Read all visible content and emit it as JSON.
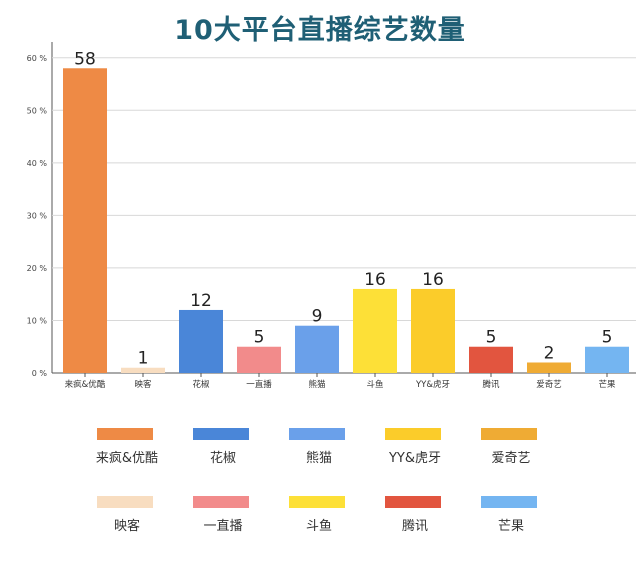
{
  "chart_data": {
    "type": "bar",
    "title": "10大平台直播综艺数量",
    "categories": [
      "来疯&优酷",
      "映客",
      "花椒",
      "一直播",
      "熊猫",
      "斗鱼",
      "YY&虎牙",
      "腾讯",
      "爱奇艺",
      "芒果"
    ],
    "values": [
      58,
      1,
      12,
      5,
      9,
      16,
      16,
      5,
      2,
      5
    ],
    "colors": [
      "#ee8a45",
      "#f8ddc0",
      "#4a86d8",
      "#f28b8b",
      "#6aa0ea",
      "#fde037",
      "#fbcc2a",
      "#e2553f",
      "#efab34",
      "#74b5f1"
    ],
    "y_tick_labels": [
      "0 %",
      "10 %",
      "20 %",
      "30 %",
      "40 %",
      "50 %",
      "60 %"
    ],
    "y_ticks": [
      0,
      10,
      20,
      30,
      40,
      50,
      60
    ],
    "ylim": [
      0,
      63
    ],
    "grid": true,
    "legend": {
      "position": "bottom",
      "rows": [
        [
          {
            "label": "来疯&优酷",
            "color": "#ee8a45"
          },
          {
            "label": "花椒",
            "color": "#4a86d8"
          },
          {
            "label": "熊猫",
            "color": "#6aa0ea"
          },
          {
            "label": "YY&虎牙",
            "color": "#fbcc2a"
          },
          {
            "label": "爱奇艺",
            "color": "#efab34"
          }
        ],
        [
          {
            "label": "映客",
            "color": "#f8ddc0"
          },
          {
            "label": "一直播",
            "color": "#f28b8b"
          },
          {
            "label": "斗鱼",
            "color": "#fde037"
          },
          {
            "label": "腾讯",
            "color": "#e2553f"
          },
          {
            "label": "芒果",
            "color": "#74b5f1"
          }
        ]
      ]
    }
  }
}
